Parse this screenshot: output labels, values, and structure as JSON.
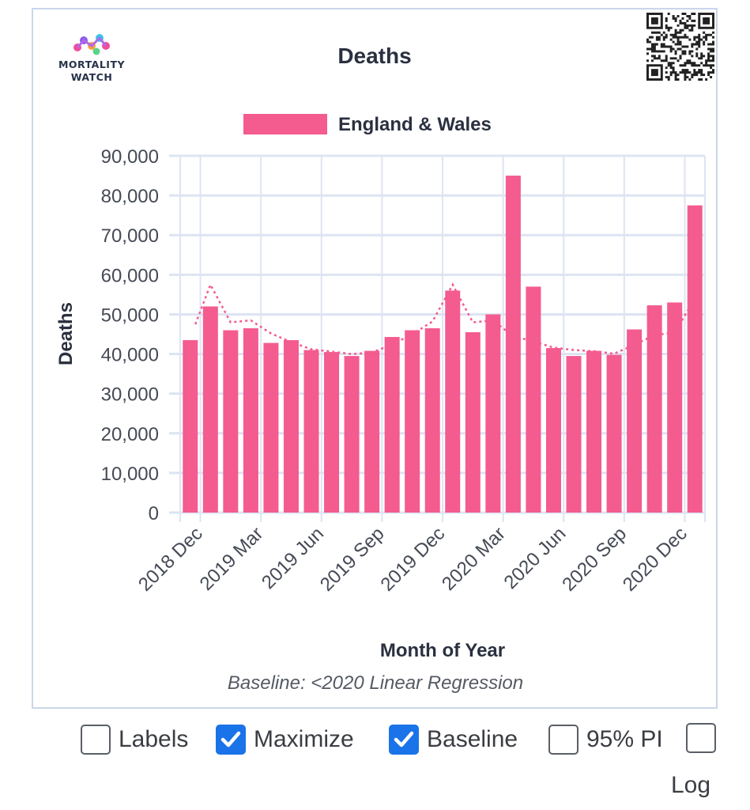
{
  "logo": {
    "line1": "MORTALITY",
    "line2": "WATCH"
  },
  "chart_data": {
    "type": "bar",
    "title": "Deaths",
    "xlabel": "Month of Year",
    "ylabel": "Deaths",
    "ylim": [
      0,
      90000
    ],
    "yticks": [
      0,
      10000,
      20000,
      30000,
      40000,
      50000,
      60000,
      70000,
      80000,
      90000
    ],
    "ytick_labels": [
      "0",
      "10,000",
      "20,000",
      "30,000",
      "40,000",
      "50,000",
      "60,000",
      "70,000",
      "80,000",
      "90,000"
    ],
    "categories": [
      "2018 Dec",
      "2019 Jan",
      "2019 Feb",
      "2019 Mar",
      "2019 Apr",
      "2019 May",
      "2019 Jun",
      "2019 Jul",
      "2019 Aug",
      "2019 Sep",
      "2019 Oct",
      "2019 Nov",
      "2019 Dec",
      "2020 Jan",
      "2020 Feb",
      "2020 Mar",
      "2020 Apr",
      "2020 May",
      "2020 Jun",
      "2020 Jul",
      "2020 Aug",
      "2020 Sep",
      "2020 Oct",
      "2020 Nov",
      "2020 Dec",
      "2021 Jan"
    ],
    "xtick_labels": [
      "2018 Dec",
      "2019 Mar",
      "2019 Jun",
      "2019 Sep",
      "2019 Dec",
      "2020 Mar",
      "2020 Jun",
      "2020 Sep",
      "2020 Dec"
    ],
    "series": [
      {
        "name": "England & Wales",
        "color": "#f45b8f",
        "values": [
          43500,
          52000,
          46000,
          46500,
          42800,
          43500,
          41000,
          40500,
          39500,
          40800,
          44300,
          46000,
          46500,
          56000,
          45500,
          50000,
          85000,
          57000,
          41500,
          39500,
          40800,
          39800,
          46200,
          52300,
          53000,
          77500
        ]
      }
    ],
    "baseline": {
      "color": "#f45b8f",
      "style": "dotted",
      "values": [
        null,
        57500,
        48000,
        48500,
        45200,
        43000,
        41200,
        40600,
        40000,
        40400,
        42400,
        45000,
        48200,
        57500,
        48000,
        48500,
        44500,
        43200,
        41600,
        41000,
        40700,
        40100,
        42300,
        44800,
        45400,
        54000
      ]
    },
    "grid": true,
    "legend_position": "top-center",
    "caption": "Baseline: <2020 Linear Regression"
  },
  "controls": [
    {
      "label": "Labels",
      "checked": false
    },
    {
      "label": "Maximize",
      "checked": true
    },
    {
      "label": "Baseline",
      "checked": true
    },
    {
      "label": "95% PI",
      "checked": false
    },
    {
      "label": "Log",
      "checked": false
    }
  ]
}
